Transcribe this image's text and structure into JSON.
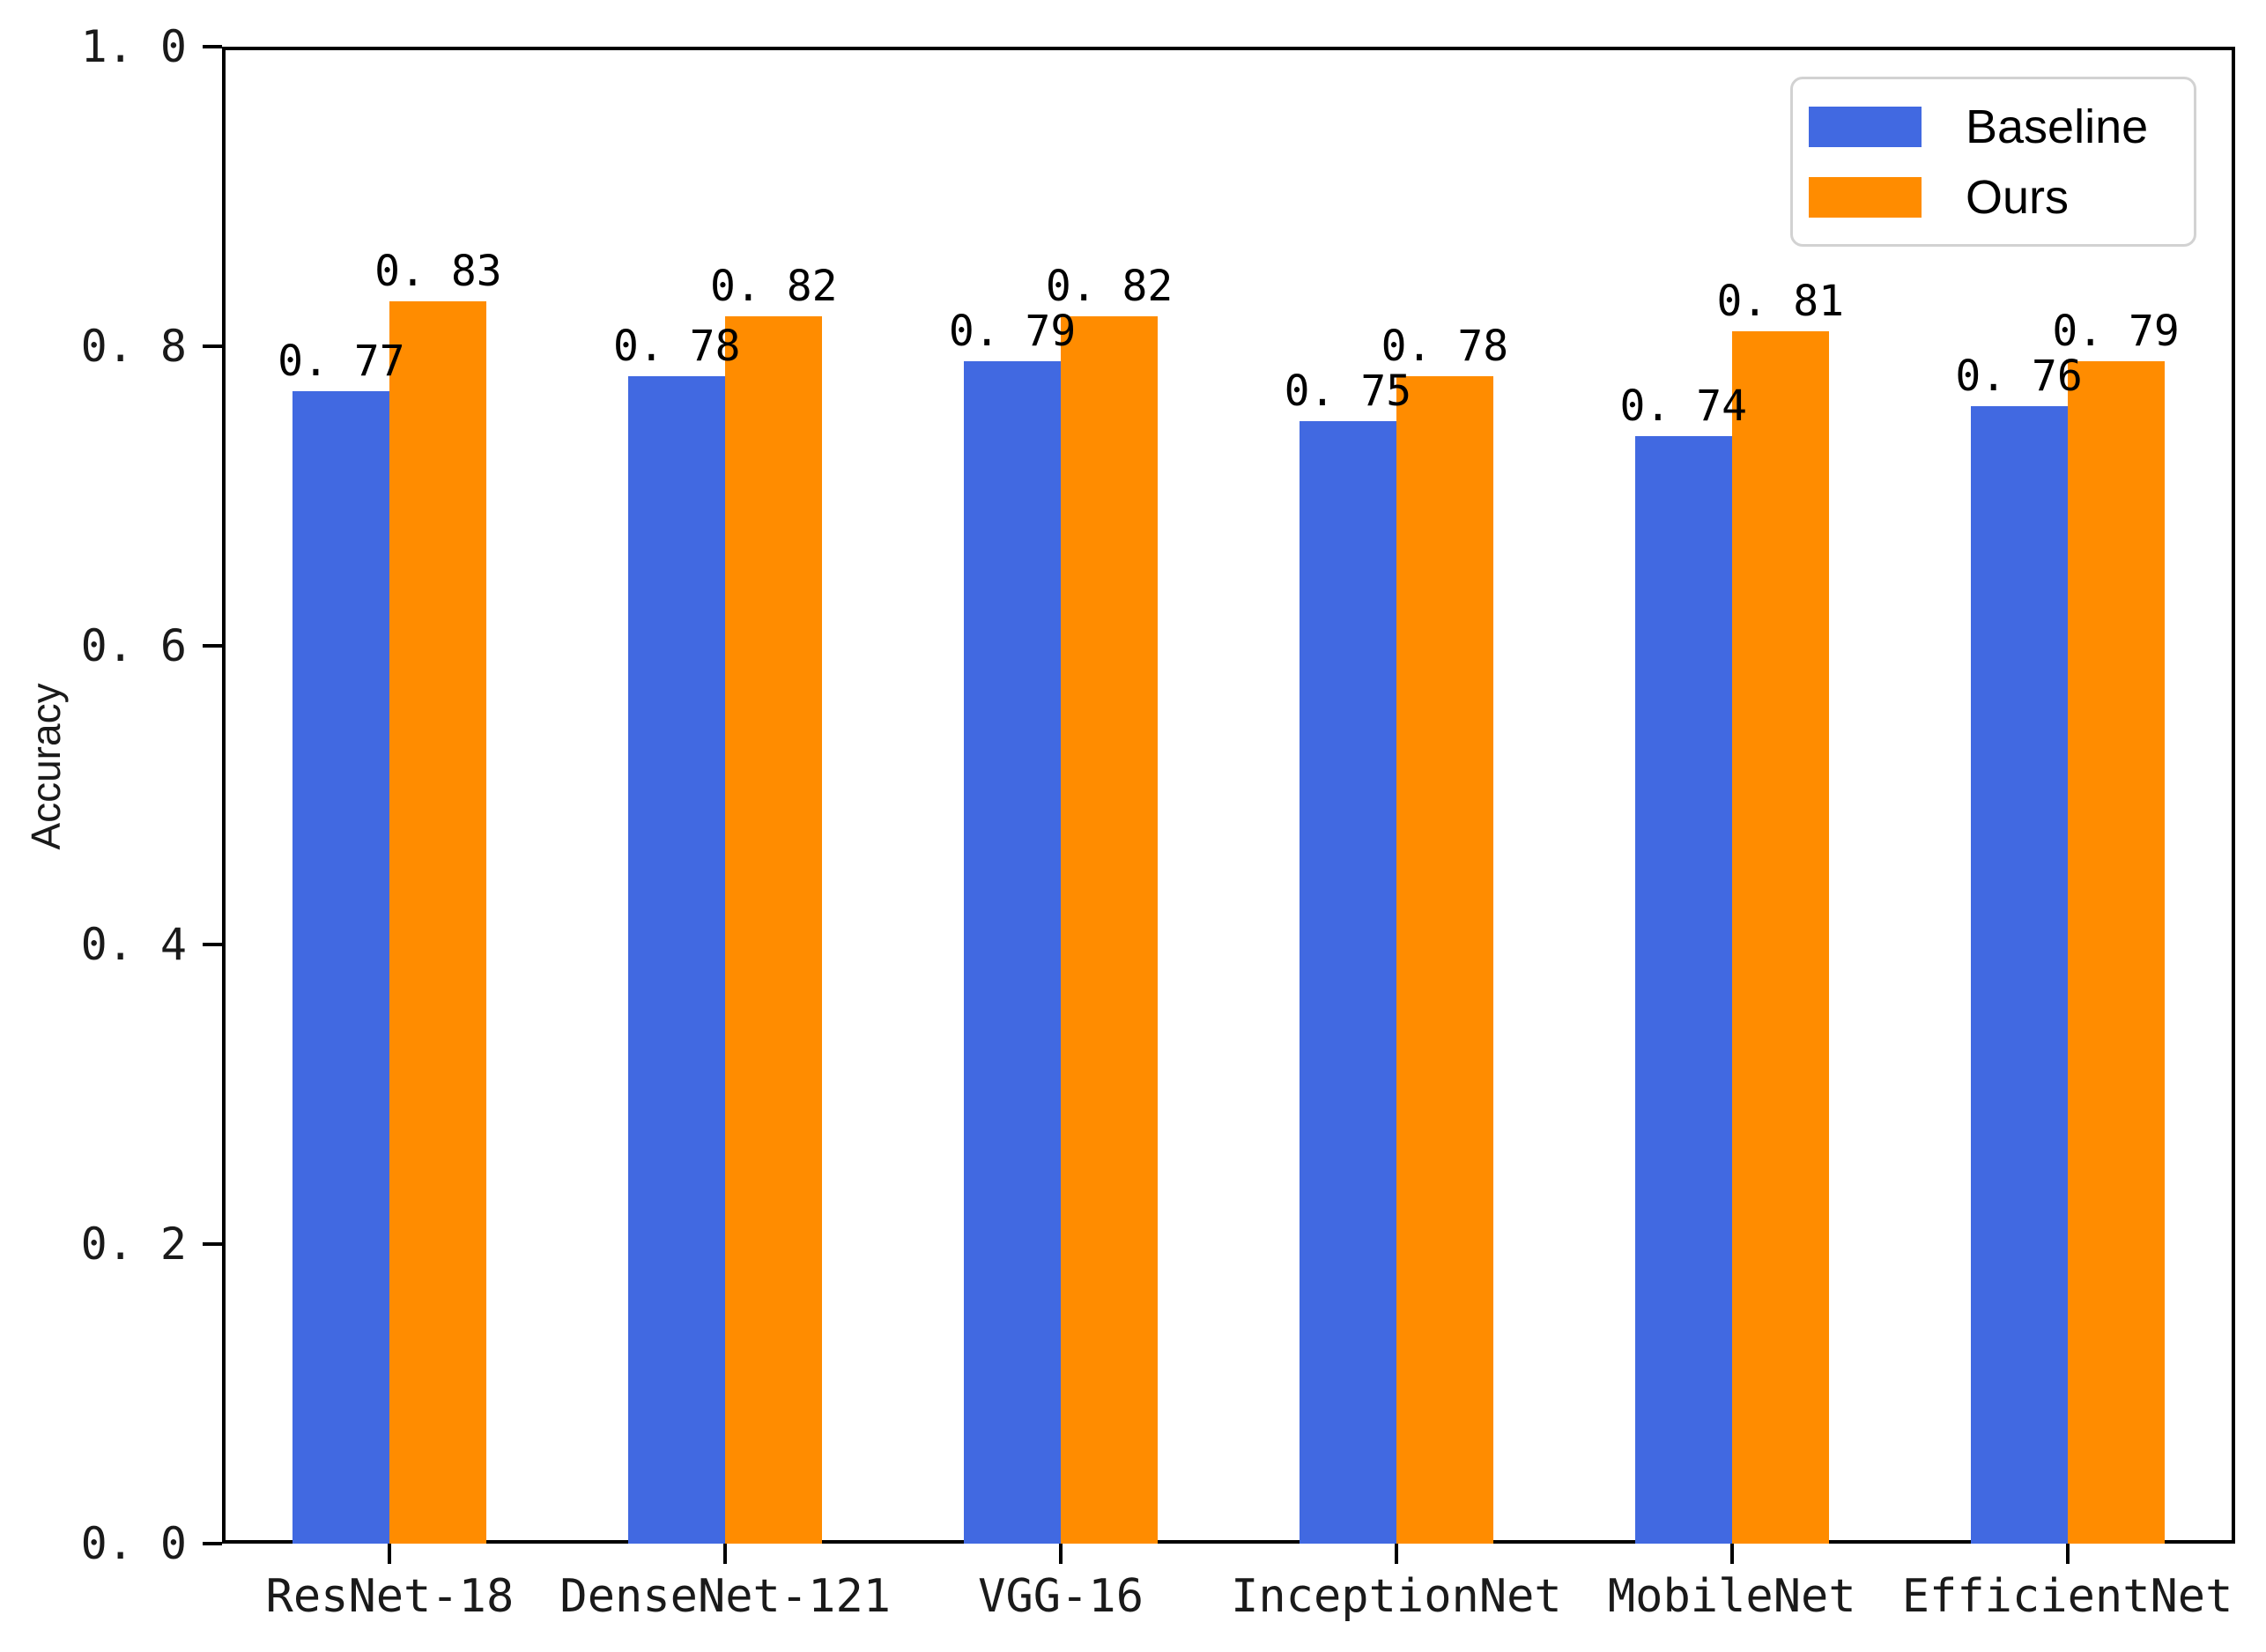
{
  "figure": {
    "background": "#ffffff"
  },
  "chart_data": {
    "type": "bar",
    "title": "",
    "xlabel": "",
    "ylabel": "Accuracy",
    "categories": [
      "ResNet-18",
      "DenseNet-121",
      "VGG-16",
      "InceptionNet",
      "MobileNet",
      "EfficientNet"
    ],
    "series": [
      {
        "name": "Baseline",
        "color": "#4169E1",
        "values": [
          0.77,
          0.78,
          0.79,
          0.75,
          0.74,
          0.76
        ],
        "value_labels": [
          "0. 77",
          "0. 78",
          "0. 79",
          "0. 75",
          "0. 74",
          "0. 76"
        ]
      },
      {
        "name": "Ours",
        "color": "#FF8C00",
        "values": [
          0.83,
          0.82,
          0.82,
          0.78,
          0.81,
          0.79
        ],
        "value_labels": [
          "0. 83",
          "0. 82",
          "0. 82",
          "0. 78",
          "0. 81",
          "0. 79"
        ]
      }
    ],
    "ylim": [
      0,
      1
    ],
    "yticks": {
      "values": [
        0.0,
        0.2,
        0.4,
        0.6,
        0.8,
        1.0
      ],
      "labels": [
        "0. 0",
        "0. 2",
        "0. 4",
        "0. 6",
        "0. 8",
        "1. 0"
      ]
    },
    "grid": false,
    "legend_position": "upper right",
    "bar_value_labels": true
  }
}
